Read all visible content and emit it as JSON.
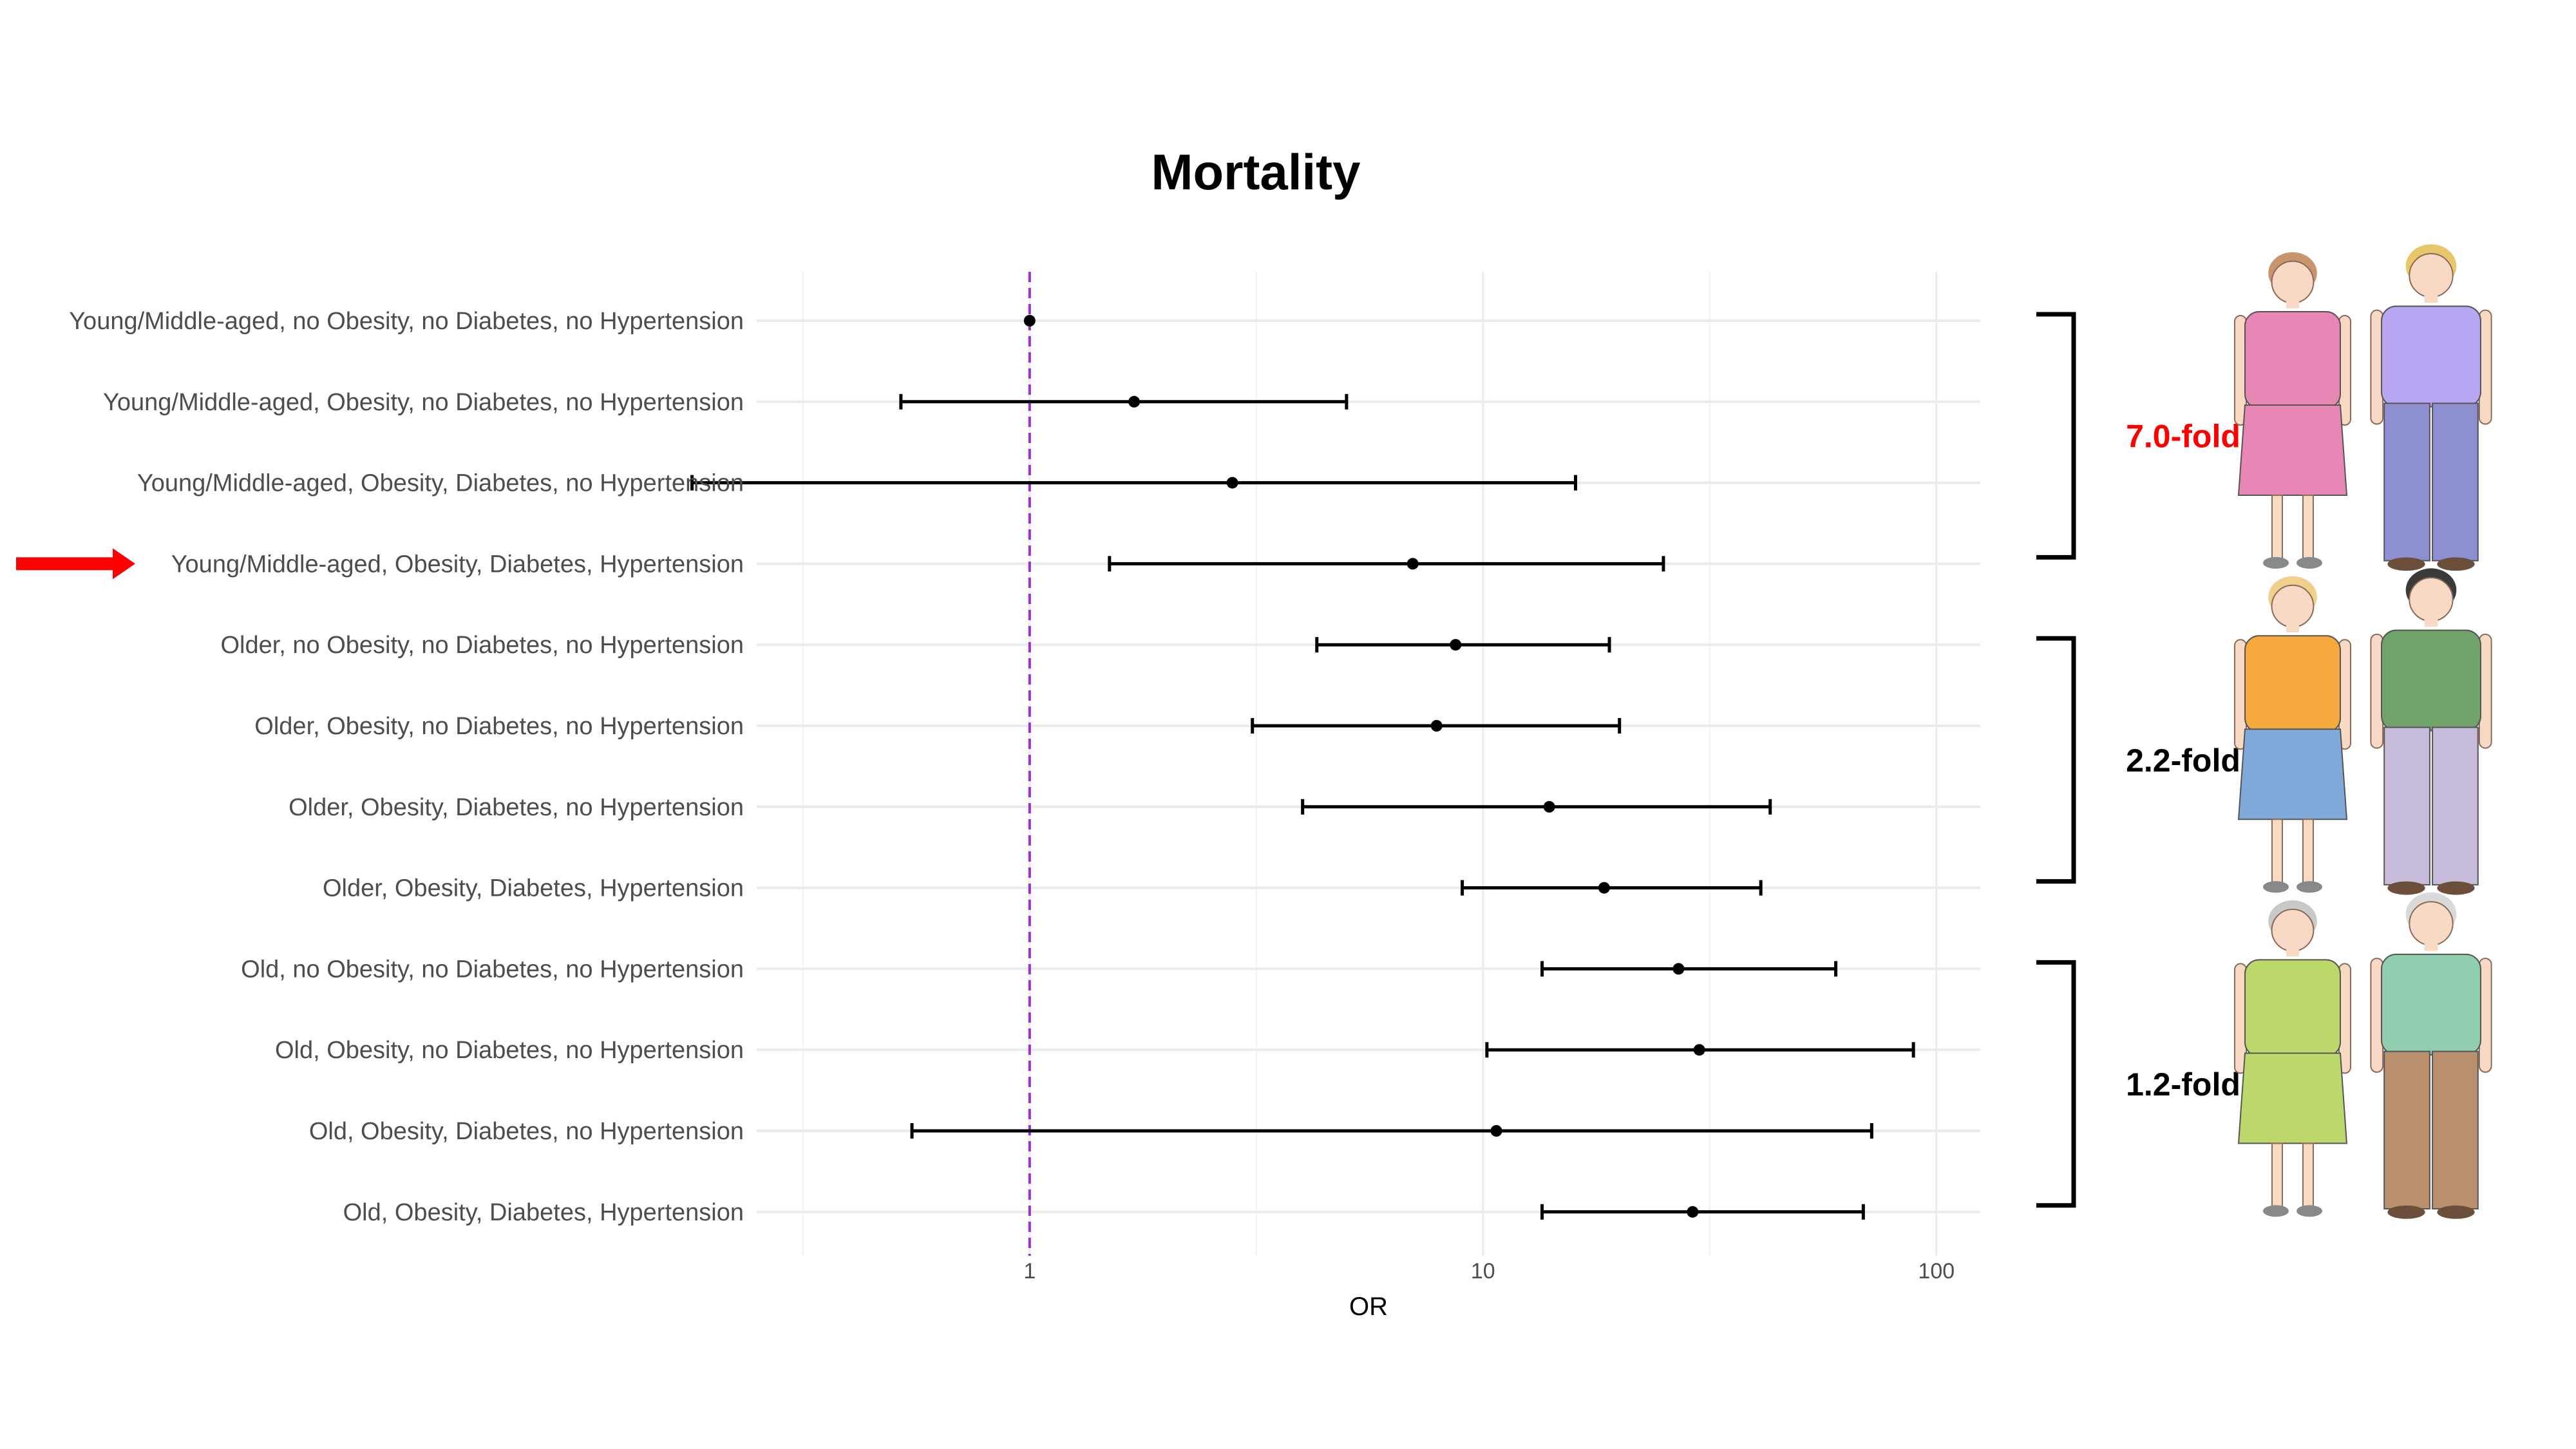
{
  "chart_data": {
    "type": "forest",
    "title": "Mortality",
    "xlabel": "OR",
    "x_scale": "log10",
    "xlim": [
      0.25,
      125
    ],
    "x_ticks": [
      1,
      10,
      100
    ],
    "x_tick_labels": [
      "1",
      "10",
      "100"
    ],
    "reference_line": 1,
    "reference_line_color": "#9b30d0",
    "grid": true,
    "rows": [
      {
        "label": "Young/Middle-aged, no Obesity, no Diabetes, no Hypertension",
        "or": 1.0,
        "lower": 1.0,
        "upper": 1.0
      },
      {
        "label": "Young/Middle-aged, Obesity, no Diabetes, no Hypertension",
        "or": 1.7,
        "lower": 0.52,
        "upper": 5.0
      },
      {
        "label": "Young/Middle-aged, Obesity, Diabetes, no Hypertension",
        "or": 2.8,
        "lower": 0.18,
        "upper": 16.0
      },
      {
        "label": "Young/Middle-aged, Obesity, Diabetes, Hypertension",
        "or": 7.0,
        "lower": 1.5,
        "upper": 25.0
      },
      {
        "label": "Older, no Obesity, no Diabetes, no Hypertension",
        "or": 8.7,
        "lower": 4.3,
        "upper": 19.0
      },
      {
        "label": "Older, Obesity, no Diabetes, no Hypertension",
        "or": 7.9,
        "lower": 3.1,
        "upper": 20.0
      },
      {
        "label": "Older, Obesity, Diabetes, no Hypertension",
        "or": 14.0,
        "lower": 4.0,
        "upper": 43.0
      },
      {
        "label": "Older, Obesity, Diabetes, Hypertension",
        "or": 18.5,
        "lower": 9.0,
        "upper": 41.0
      },
      {
        "label": "Old, no Obesity, no Diabetes, no Hypertension",
        "or": 27.0,
        "lower": 13.5,
        "upper": 60.0
      },
      {
        "label": "Old, Obesity, no Diabetes, no Hypertension",
        "or": 30.0,
        "lower": 10.2,
        "upper": 89.0
      },
      {
        "label": "Old, Obesity, Diabetes, no Hypertension",
        "or": 10.7,
        "lower": 0.55,
        "upper": 72.0
      },
      {
        "label": "Old, Obesity, Diabetes, Hypertension",
        "or": 29.0,
        "lower": 13.5,
        "upper": 69.0
      }
    ],
    "groups": [
      {
        "first_row": 0,
        "last_row": 3,
        "fold_label": "7.0-fold",
        "color": "#ff0000",
        "figures": [
          "young-woman-figure",
          "young-man-figure"
        ]
      },
      {
        "first_row": 4,
        "last_row": 7,
        "fold_label": "2.2-fold",
        "color": "#000000",
        "figures": [
          "older-woman-figure",
          "older-man-figure"
        ]
      },
      {
        "first_row": 8,
        "last_row": 11,
        "fold_label": "1.2-fold",
        "color": "#000000",
        "figures": [
          "old-woman-figure",
          "old-man-figure"
        ]
      }
    ],
    "highlighted_row": 3,
    "highlight_marker": "red-arrow-icon",
    "highlight_color": "#ff0000"
  }
}
